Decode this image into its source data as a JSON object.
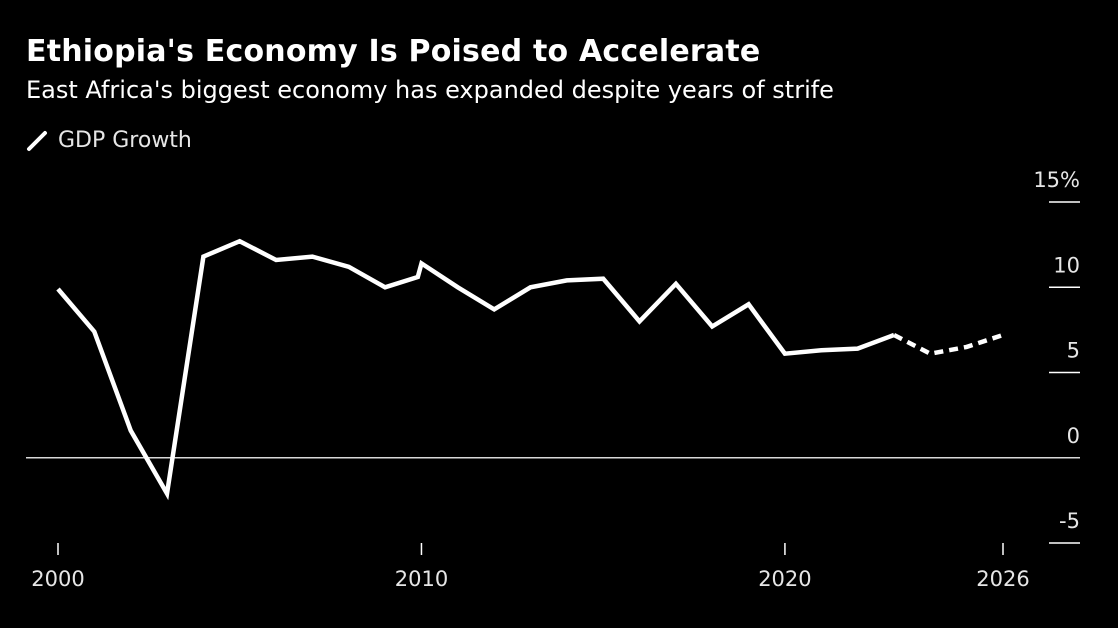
{
  "chart_data": {
    "type": "line",
    "title": "Ethiopia's Economy Is Poised to Accelerate",
    "subtitle": "East Africa's biggest economy has expanded despite years of strife",
    "xlabel": "",
    "ylabel": "",
    "xlim": [
      2000,
      2026
    ],
    "ylim": [
      -5,
      15
    ],
    "x_ticks": [
      2000,
      2010,
      2020,
      2026
    ],
    "y_ticks": [
      {
        "value": 15,
        "label": "15%"
      },
      {
        "value": 10,
        "label": "10"
      },
      {
        "value": 5,
        "label": "5"
      },
      {
        "value": 0,
        "label": "0"
      },
      {
        "value": -5,
        "label": "-5"
      }
    ],
    "legend": {
      "position": "top-left"
    },
    "series": [
      {
        "name": "GDP Growth",
        "color": "#ffffff",
        "actual": {
          "x": [
            2000,
            2001,
            2002,
            2003,
            2004,
            2005,
            2006,
            2007,
            2008,
            2009,
            2009.9,
            2010,
            2011,
            2012,
            2013,
            2014,
            2015,
            2016,
            2017,
            2018,
            2019,
            2020,
            2021,
            2022,
            2023
          ],
          "y": [
            9.9,
            7.4,
            1.6,
            -2.1,
            11.8,
            12.7,
            11.6,
            11.8,
            11.2,
            10.0,
            10.6,
            11.4,
            10.0,
            8.7,
            10.0,
            10.4,
            10.5,
            8.0,
            10.2,
            7.7,
            9.0,
            6.1,
            6.3,
            6.4,
            7.2
          ],
          "style": "solid"
        },
        "forecast": {
          "x": [
            2023,
            2024,
            2025,
            2026
          ],
          "y": [
            7.2,
            6.1,
            6.5,
            7.2
          ],
          "style": "dashed"
        }
      }
    ]
  }
}
